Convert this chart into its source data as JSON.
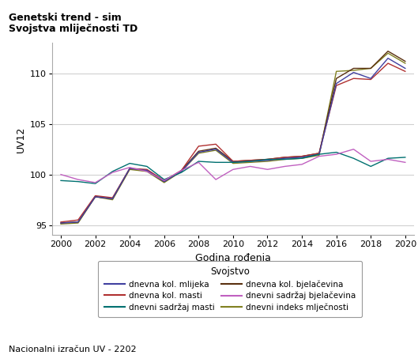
{
  "title_line1": "Genetski trend - sim",
  "title_line2": "Svojstva mliječnosti TD",
  "xlabel": "Godina rođenja",
  "ylabel": "UV12",
  "footer": "Nacionalni izračun UV - 2202",
  "legend_title": "Svojstvo",
  "xlim": [
    1999.5,
    2020.5
  ],
  "ylim": [
    94.0,
    113.0
  ],
  "yticks": [
    95,
    100,
    105,
    110
  ],
  "xticks": [
    2000,
    2002,
    2004,
    2006,
    2008,
    2010,
    2012,
    2014,
    2016,
    2018,
    2020
  ],
  "series": {
    "dnevna kol. mlijeka": {
      "color": "#4040A0",
      "zorder": 4,
      "x": [
        2000,
        2001,
        2002,
        2003,
        2004,
        2005,
        2006,
        2007,
        2008,
        2009,
        2010,
        2011,
        2012,
        2013,
        2014,
        2015,
        2016,
        2017,
        2018,
        2019,
        2020
      ],
      "y": [
        95.2,
        95.3,
        97.8,
        97.6,
        100.6,
        100.4,
        99.3,
        100.3,
        102.2,
        102.5,
        101.2,
        101.3,
        101.4,
        101.6,
        101.7,
        102.0,
        109.0,
        110.1,
        109.5,
        111.5,
        110.5
      ]
    },
    "dnevna kol. masti": {
      "color": "#B03030",
      "zorder": 3,
      "x": [
        2000,
        2001,
        2002,
        2003,
        2004,
        2005,
        2006,
        2007,
        2008,
        2009,
        2010,
        2011,
        2012,
        2013,
        2014,
        2015,
        2016,
        2017,
        2018,
        2019,
        2020
      ],
      "y": [
        95.3,
        95.5,
        97.9,
        97.7,
        100.6,
        100.5,
        99.4,
        100.4,
        102.8,
        103.0,
        101.3,
        101.4,
        101.5,
        101.7,
        101.8,
        102.1,
        108.8,
        109.5,
        109.4,
        111.0,
        110.2
      ]
    },
    "dnevni sadržaj masti": {
      "color": "#007070",
      "zorder": 5,
      "x": [
        2000,
        2001,
        2002,
        2003,
        2004,
        2005,
        2006,
        2007,
        2008,
        2009,
        2010,
        2011,
        2012,
        2013,
        2014,
        2015,
        2016,
        2017,
        2018,
        2019,
        2020
      ],
      "y": [
        99.4,
        99.3,
        99.1,
        100.3,
        101.1,
        100.8,
        99.5,
        100.2,
        101.3,
        101.2,
        101.2,
        101.3,
        101.5,
        101.5,
        101.6,
        102.0,
        102.2,
        101.6,
        100.8,
        101.6,
        101.7
      ]
    },
    "dnevna kol. bjelačevina": {
      "color": "#5A3010",
      "zorder": 2,
      "x": [
        2000,
        2001,
        2002,
        2003,
        2004,
        2005,
        2006,
        2007,
        2008,
        2009,
        2010,
        2011,
        2012,
        2013,
        2014,
        2015,
        2016,
        2017,
        2018,
        2019,
        2020
      ],
      "y": [
        95.2,
        95.3,
        97.8,
        97.6,
        100.6,
        100.4,
        99.3,
        100.4,
        102.3,
        102.6,
        101.3,
        101.4,
        101.5,
        101.7,
        101.8,
        102.1,
        109.5,
        110.5,
        110.5,
        112.2,
        111.2
      ]
    },
    "dnevni sadržaj bjelačevina": {
      "color": "#C060C0",
      "zorder": 6,
      "x": [
        2000,
        2001,
        2002,
        2003,
        2004,
        2005,
        2006,
        2007,
        2008,
        2009,
        2010,
        2011,
        2012,
        2013,
        2014,
        2015,
        2016,
        2017,
        2018,
        2019,
        2020
      ],
      "y": [
        100.0,
        99.5,
        99.2,
        100.2,
        100.7,
        100.3,
        99.4,
        100.4,
        101.2,
        99.5,
        100.5,
        100.8,
        100.5,
        100.8,
        101.0,
        101.8,
        102.0,
        102.5,
        101.3,
        101.5,
        101.2
      ]
    },
    "dnevni indeks mlječnosti": {
      "color": "#808020",
      "zorder": 1,
      "x": [
        2000,
        2001,
        2002,
        2003,
        2004,
        2005,
        2006,
        2007,
        2008,
        2009,
        2010,
        2011,
        2012,
        2013,
        2014,
        2015,
        2016,
        2017,
        2018,
        2019,
        2020
      ],
      "y": [
        95.1,
        95.2,
        97.8,
        97.5,
        100.5,
        100.3,
        99.2,
        100.3,
        102.1,
        102.4,
        101.1,
        101.2,
        101.3,
        101.5,
        101.6,
        101.9,
        110.2,
        110.3,
        110.5,
        112.0,
        111.0
      ]
    }
  },
  "legend_order": [
    "dnevna kol. mlijeka",
    "dnevna kol. masti",
    "dnevni sadržaj masti",
    "dnevna kol. bjelačevina",
    "dnevni sadržaj bjelačevina",
    "dnevni indeks mlječnosti"
  ],
  "background_color": "#ffffff",
  "plot_bg_color": "#ffffff",
  "grid_color": "#d0d0d0"
}
